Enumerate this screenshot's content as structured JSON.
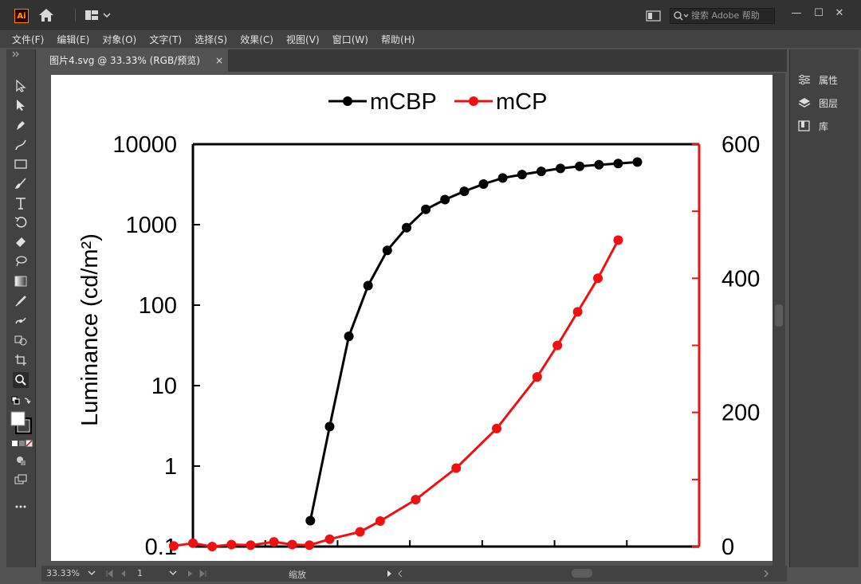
{
  "app": {
    "logo_text": "Ai",
    "search_placeholder": "搜索 Adobe 帮助",
    "win_minimize": "—",
    "win_maximize": "☐",
    "win_close": "✕"
  },
  "menu": [
    "文件(F)",
    "编辑(E)",
    "对象(O)",
    "文字(T)",
    "选择(S)",
    "效果(C)",
    "视图(V)",
    "窗口(W)",
    "帮助(H)"
  ],
  "document": {
    "tab_title": "图片4.svg @ 33.33% (RGB/预览)",
    "close_label": "×"
  },
  "right_panel": {
    "items": [
      "属性",
      "图层",
      "库"
    ]
  },
  "status": {
    "zoom": "33.33%",
    "artboard_number": "1",
    "tool_name": "缩放"
  },
  "colors": {
    "series1": "#000000",
    "series2": "#ee1111",
    "ui_dark": "#323232",
    "ui_mid": "#424242",
    "ui_bg": "#535353"
  },
  "chart_data": {
    "type": "line",
    "title": "",
    "xlabel": "",
    "ylabel": "Luminance (cd/m²)",
    "legend_position": "top",
    "y_scale": "log",
    "ylim": [
      0.1,
      10000
    ],
    "y_ticks": [
      "10000",
      "1000",
      "100",
      "10",
      "1",
      "0.1"
    ],
    "y2lim": [
      0,
      600
    ],
    "y2_ticks": [
      "600",
      "400",
      "200",
      "0"
    ],
    "x_ticks_shown": false,
    "series": [
      {
        "name": "mCBP",
        "axis": "left",
        "color": "#000000",
        "points": [
          [
            0.232,
            0.21
          ],
          [
            0.27,
            3.1
          ],
          [
            0.308,
            41
          ],
          [
            0.346,
            175
          ],
          [
            0.384,
            480
          ],
          [
            0.422,
            920
          ],
          [
            0.46,
            1550
          ],
          [
            0.498,
            2050
          ],
          [
            0.536,
            2600
          ],
          [
            0.574,
            3200
          ],
          [
            0.612,
            3800
          ],
          [
            0.65,
            4200
          ],
          [
            0.688,
            4600
          ],
          [
            0.726,
            5000
          ],
          [
            0.764,
            5300
          ],
          [
            0.802,
            5550
          ],
          [
            0.84,
            5750
          ],
          [
            0.878,
            6000
          ]
        ]
      },
      {
        "name": "mCP",
        "axis": "right",
        "color": "#ee1111",
        "points": [
          [
            -0.038,
            1
          ],
          [
            0.0,
            5
          ],
          [
            0.038,
            0
          ],
          [
            0.076,
            3
          ],
          [
            0.114,
            2
          ],
          [
            0.16,
            7
          ],
          [
            0.196,
            3
          ],
          [
            0.23,
            2
          ],
          [
            0.27,
            11
          ],
          [
            0.33,
            22
          ],
          [
            0.37,
            38
          ],
          [
            0.44,
            70
          ],
          [
            0.52,
            117
          ],
          [
            0.6,
            176
          ],
          [
            0.68,
            253
          ],
          [
            0.72,
            300
          ],
          [
            0.76,
            350
          ],
          [
            0.8,
            400
          ],
          [
            0.84,
            457
          ]
        ]
      }
    ]
  }
}
